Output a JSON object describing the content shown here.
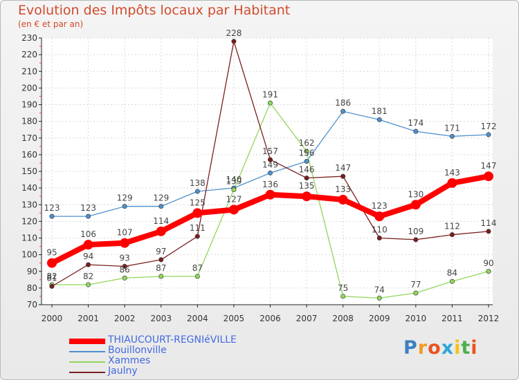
{
  "chart_data": {
    "type": "line",
    "title": "Evolution des Impôts locaux par Habitant",
    "subtitle": "(en € et par an)",
    "xlabel": "",
    "ylabel": "",
    "ylim": [
      70,
      230
    ],
    "yticks": [
      70,
      80,
      90,
      100,
      110,
      120,
      130,
      140,
      150,
      160,
      170,
      180,
      190,
      200,
      210,
      220,
      230
    ],
    "categories": [
      "2000",
      "2001",
      "2002",
      "2003",
      "2004",
      "2005",
      "2006",
      "2007",
      "2008",
      "2009",
      "2010",
      "2011",
      "2012"
    ],
    "legend_position": "bottom-left",
    "series": [
      {
        "name": "Bouillonville",
        "color": "#4f8fcd",
        "values": [
          123,
          123,
          129,
          129,
          138,
          140,
          149,
          156,
          186,
          181,
          174,
          171,
          172
        ]
      },
      {
        "name": "Xammes",
        "color": "#8fd65a",
        "values": [
          82,
          82,
          86,
          87,
          87,
          139,
          191,
          162,
          75,
          74,
          77,
          84,
          90
        ]
      },
      {
        "name": "Jaulny",
        "color": "#7a1e1e",
        "values": [
          81,
          94,
          93,
          97,
          111,
          228,
          157,
          146,
          147,
          110,
          109,
          112,
          114
        ]
      },
      {
        "name": "THIAUCOURT-REGNIéVILLE",
        "color": "#ff0000",
        "values": [
          95,
          106,
          107,
          114,
          125,
          127,
          136,
          135,
          133,
          123,
          130,
          143,
          147
        ]
      }
    ],
    "legend_order": [
      "THIAUCOURT-REGNIéVILLE",
      "Bouillonville",
      "Xammes",
      "Jaulny"
    ]
  },
  "logo": {
    "letters": [
      "P",
      "r",
      "o",
      "x",
      "i",
      "t",
      "i"
    ],
    "colors": [
      "#3c7fc2",
      "#f29a1f",
      "#e8551f",
      "#2ca6d8",
      "#f0c419",
      "#4cae4c",
      "#e8551f"
    ]
  }
}
